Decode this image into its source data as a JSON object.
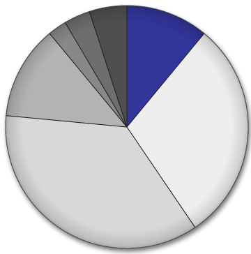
{
  "chart_data": {
    "type": "pie",
    "title": "",
    "start_angle_deg": 0,
    "direction": "clockwise",
    "slices": [
      {
        "value": 11.0,
        "color": "#33349a"
      },
      {
        "value": 29.5,
        "color": "#eeeeee"
      },
      {
        "value": 36.0,
        "color": "#d7d9d9"
      },
      {
        "value": 12.5,
        "color": "#b3b3b3"
      },
      {
        "value": 2.5,
        "color": "#888888"
      },
      {
        "value": 3.5,
        "color": "#6e6e6e"
      },
      {
        "value": 5.0,
        "color": "#4f4f4f"
      }
    ],
    "legend": "none",
    "labels": "none"
  }
}
